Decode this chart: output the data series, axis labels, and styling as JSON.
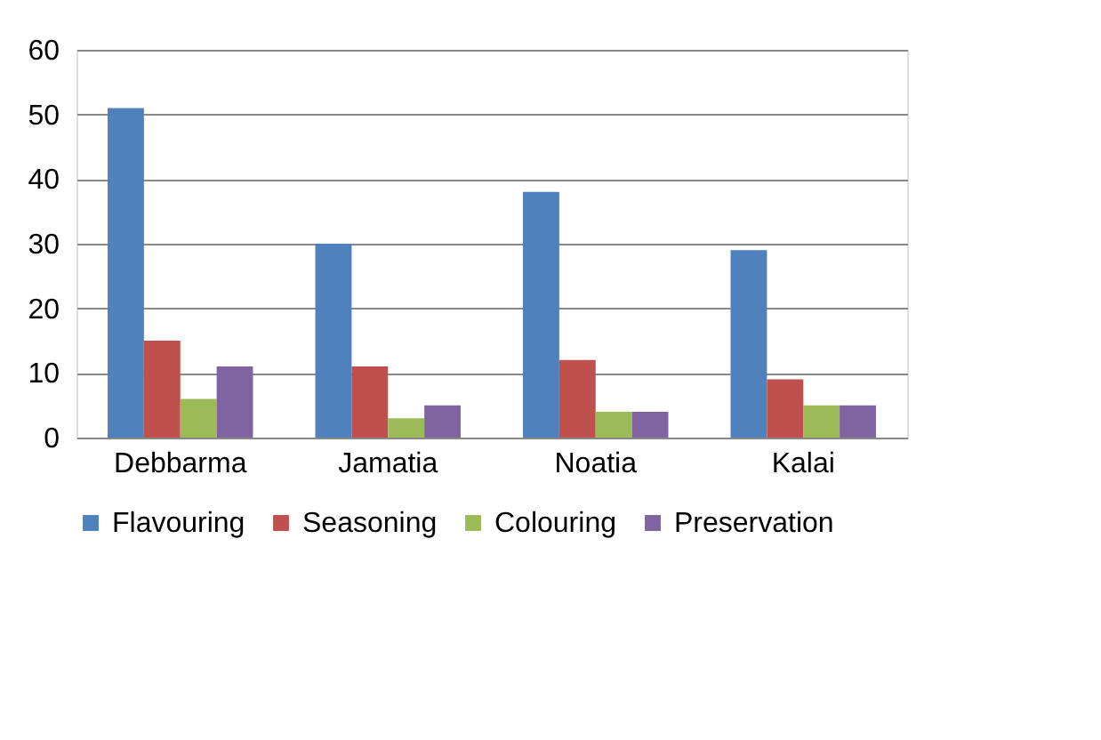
{
  "chart_data": {
    "type": "bar",
    "categories": [
      "Debbarma",
      "Jamatia",
      "Noatia",
      "Kalai"
    ],
    "series": [
      {
        "name": "Flavouring",
        "color": "#4f81bd",
        "values": [
          51,
          30,
          38,
          29
        ]
      },
      {
        "name": "Seasoning",
        "color": "#c0504d",
        "values": [
          15,
          11,
          12,
          9
        ]
      },
      {
        "name": "Colouring",
        "color": "#9bbb59",
        "values": [
          6,
          3,
          4,
          5
        ]
      },
      {
        "name": "Preservation",
        "color": "#8064a2",
        "values": [
          11,
          5,
          4,
          5
        ]
      }
    ],
    "ylim": [
      0,
      60
    ],
    "yticks": [
      0,
      10,
      20,
      30,
      40,
      50,
      60
    ],
    "grid": "y",
    "legend": "bottom"
  }
}
